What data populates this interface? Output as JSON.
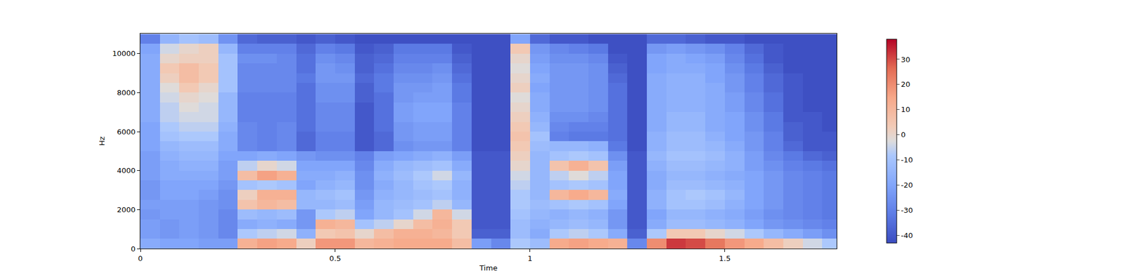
{
  "chart_data": {
    "type": "heatmap",
    "x_label": "Time",
    "y_label": "Hz",
    "xlim": [
      0,
      1.787
    ],
    "xticks": [
      0,
      0.5,
      1,
      1.5
    ],
    "ylim": [
      0,
      11025
    ],
    "yticks": [
      0,
      2000,
      4000,
      6000,
      8000,
      10000
    ],
    "colorbar_range": [
      -43,
      38
    ],
    "colorbar_ticks": [
      -40,
      -30,
      -20,
      -10,
      0,
      10,
      20,
      30
    ],
    "x": [
      0.025,
      0.075,
      0.125,
      0.175,
      0.225,
      0.275,
      0.325,
      0.375,
      0.425,
      0.475,
      0.525,
      0.575,
      0.625,
      0.675,
      0.725,
      0.775,
      0.825,
      0.875,
      0.925,
      0.975,
      1.025,
      1.075,
      1.125,
      1.175,
      1.225,
      1.275,
      1.325,
      1.375,
      1.425,
      1.475,
      1.525,
      1.575,
      1.625,
      1.675,
      1.725,
      1.775
    ],
    "y": [
      250,
      750,
      1250,
      1750,
      2250,
      2750,
      3250,
      3750,
      4250,
      4750,
      5250,
      5750,
      6250,
      6750,
      7250,
      7750,
      8250,
      8750,
      9250,
      9750,
      10250,
      10750
    ],
    "cells": [
      [
        -18,
        -22,
        -22,
        -24,
        -22,
        -24,
        -24,
        -22,
        -22,
        -22,
        -20,
        -20,
        -20,
        -18,
        -18,
        -18,
        -18,
        -18,
        -18,
        -18,
        -20,
        -30
      ],
      [
        -20,
        -24,
        -24,
        -22,
        -22,
        -20,
        -20,
        -18,
        -18,
        -16,
        -14,
        -10,
        -8,
        -6,
        -6,
        -4,
        -2,
        2,
        4,
        0,
        -4,
        -15
      ],
      [
        -20,
        -22,
        -22,
        -22,
        -22,
        -20,
        -20,
        -18,
        -16,
        -14,
        -12,
        -8,
        -6,
        -4,
        -2,
        0,
        4,
        8,
        8,
        2,
        0,
        -10
      ],
      [
        -22,
        -24,
        -24,
        -24,
        -24,
        -22,
        -20,
        -18,
        -16,
        -14,
        -12,
        -8,
        -6,
        -4,
        -4,
        -2,
        0,
        4,
        4,
        2,
        2,
        -12
      ],
      [
        -22,
        -28,
        -28,
        -28,
        -26,
        -26,
        -24,
        -22,
        -22,
        -20,
        -18,
        -18,
        -16,
        -14,
        -14,
        -14,
        -10,
        -10,
        -10,
        -10,
        -14,
        -25
      ],
      [
        12,
        -8,
        -18,
        -12,
        6,
        2,
        -10,
        8,
        -6,
        -20,
        -28,
        -28,
        -28,
        -30,
        -30,
        -30,
        -28,
        -28,
        -28,
        -26,
        -30,
        -36
      ],
      [
        16,
        -6,
        -16,
        -14,
        10,
        12,
        -8,
        16,
        0,
        -18,
        -30,
        -30,
        -30,
        -30,
        -30,
        -30,
        -28,
        -28,
        -28,
        -26,
        -30,
        -38
      ],
      [
        14,
        -4,
        -18,
        -12,
        8,
        12,
        -10,
        12,
        -4,
        -20,
        -28,
        -28,
        -28,
        -30,
        -30,
        -30,
        -28,
        -28,
        -28,
        -28,
        -30,
        -38
      ],
      [
        2,
        -16,
        -24,
        -24,
        -14,
        -14,
        -20,
        -18,
        -20,
        -24,
        -36,
        -36,
        -34,
        -34,
        -34,
        -34,
        -34,
        -32,
        -34,
        -34,
        -36,
        -40
      ],
      [
        18,
        4,
        12,
        -8,
        -14,
        -12,
        -16,
        -18,
        -20,
        -26,
        -30,
        -30,
        -28,
        -28,
        -28,
        -26,
        -26,
        -24,
        -24,
        -26,
        -30,
        -38
      ],
      [
        18,
        6,
        10,
        -6,
        -12,
        -10,
        -14,
        -16,
        -20,
        -26,
        -30,
        -30,
        -28,
        -28,
        -28,
        -26,
        -26,
        -24,
        -26,
        -28,
        -32,
        -40
      ],
      [
        10,
        0,
        -10,
        -20,
        -22,
        -24,
        -26,
        -26,
        -28,
        -30,
        -40,
        -40,
        -40,
        -40,
        -40,
        -38,
        -38,
        -36,
        -38,
        -38,
        -40,
        -42
      ],
      [
        12,
        8,
        -6,
        -14,
        -14,
        -16,
        -18,
        -16,
        -18,
        -22,
        -36,
        -36,
        -34,
        -34,
        -34,
        -34,
        -32,
        -32,
        -34,
        -36,
        -38,
        -42
      ],
      [
        14,
        12,
        0,
        -10,
        -12,
        -14,
        -14,
        -12,
        -14,
        -20,
        -26,
        -24,
        -24,
        -22,
        -22,
        -24,
        -24,
        -26,
        -28,
        -30,
        -32,
        -42
      ],
      [
        14,
        12,
        8,
        -4,
        -10,
        -12,
        -10,
        -8,
        -12,
        -18,
        -24,
        -22,
        -22,
        -20,
        -20,
        -22,
        -24,
        -26,
        -28,
        -30,
        -32,
        -42
      ],
      [
        14,
        10,
        12,
        10,
        -6,
        -10,
        -8,
        -4,
        -10,
        -16,
        -24,
        -22,
        -22,
        -20,
        -20,
        -22,
        -22,
        -24,
        -26,
        -30,
        -32,
        -42
      ],
      [
        8,
        4,
        4,
        -4,
        -14,
        -16,
        -16,
        -14,
        -18,
        -22,
        -30,
        -30,
        -30,
        -30,
        -30,
        -32,
        -32,
        -34,
        -36,
        -38,
        -40,
        -42
      ],
      [
        -22,
        -38,
        -40,
        -40,
        -40,
        -40,
        -40,
        -40,
        -40,
        -40,
        -42,
        -42,
        -42,
        -42,
        -42,
        -42,
        -42,
        -42,
        -42,
        -42,
        -42,
        -42
      ],
      [
        -28,
        -38,
        -40,
        -40,
        -40,
        -40,
        -40,
        -40,
        -40,
        -40,
        -42,
        -42,
        -42,
        -42,
        -42,
        -42,
        -42,
        -42,
        -42,
        -42,
        -42,
        -42
      ],
      [
        -8,
        -12,
        -12,
        -10,
        -8,
        -8,
        -6,
        -4,
        0,
        2,
        4,
        6,
        4,
        2,
        0,
        -2,
        2,
        0,
        -2,
        0,
        4,
        -20
      ],
      [
        -12,
        -18,
        -16,
        -14,
        -12,
        -14,
        -14,
        -14,
        -14,
        -14,
        -12,
        -10,
        -14,
        -16,
        -18,
        -18,
        -20,
        -18,
        -20,
        -22,
        -24,
        -36
      ],
      [
        14,
        -8,
        -14,
        -16,
        -10,
        10,
        -10,
        -6,
        6,
        -10,
        -14,
        -30,
        -28,
        -26,
        -24,
        -24,
        -24,
        -24,
        -24,
        -26,
        -28,
        -40
      ],
      [
        16,
        -6,
        -12,
        -14,
        -8,
        14,
        -8,
        -2,
        12,
        -8,
        -14,
        -32,
        -30,
        -26,
        -24,
        -24,
        -24,
        -24,
        -24,
        -26,
        -30,
        -40
      ],
      [
        14,
        -8,
        -14,
        -16,
        -10,
        10,
        -10,
        -6,
        6,
        -10,
        -16,
        -32,
        -30,
        -28,
        -26,
        -26,
        -26,
        -26,
        -26,
        -28,
        -32,
        -42
      ],
      [
        12,
        -18,
        -24,
        -24,
        -20,
        -18,
        -20,
        -20,
        -22,
        -26,
        -32,
        -34,
        -34,
        -34,
        -34,
        -34,
        -34,
        -36,
        -38,
        -40,
        -42,
        -42
      ],
      [
        -28,
        -38,
        -40,
        -40,
        -40,
        -40,
        -40,
        -40,
        -40,
        -40,
        -42,
        -42,
        -42,
        -42,
        -42,
        -42,
        -42,
        -42,
        -42,
        -42,
        -42,
        -42
      ],
      [
        20,
        -8,
        -18,
        -20,
        -16,
        -16,
        -18,
        -18,
        -16,
        -14,
        -16,
        -16,
        -18,
        -18,
        -18,
        -18,
        -18,
        -18,
        -20,
        -20,
        -24,
        -36
      ],
      [
        32,
        4,
        -12,
        -14,
        -10,
        -10,
        -12,
        -14,
        -12,
        -10,
        -12,
        -12,
        -14,
        -14,
        -16,
        -16,
        -16,
        -16,
        -18,
        -18,
        -22,
        -36
      ],
      [
        30,
        4,
        -12,
        -14,
        -10,
        -8,
        -12,
        -14,
        -12,
        -10,
        -12,
        -12,
        -14,
        -14,
        -16,
        -16,
        -16,
        -16,
        -18,
        -20,
        -24,
        -38
      ],
      [
        24,
        0,
        -14,
        -16,
        -12,
        -10,
        -14,
        -16,
        -14,
        -12,
        -14,
        -16,
        -18,
        -18,
        -18,
        -18,
        -18,
        -20,
        -20,
        -22,
        -26,
        -40
      ],
      [
        18,
        -4,
        -16,
        -18,
        -16,
        -14,
        -16,
        -18,
        -16,
        -16,
        -18,
        -20,
        -20,
        -20,
        -22,
        -22,
        -24,
        -24,
        -26,
        -28,
        -30,
        -40
      ],
      [
        14,
        -8,
        -20,
        -22,
        -20,
        -20,
        -20,
        -20,
        -22,
        -22,
        -24,
        -24,
        -26,
        -26,
        -28,
        -28,
        -30,
        -30,
        -32,
        -34,
        -36,
        -42
      ],
      [
        8,
        -14,
        -24,
        -26,
        -24,
        -24,
        -24,
        -24,
        -26,
        -28,
        -30,
        -30,
        -32,
        -32,
        -34,
        -34,
        -36,
        -36,
        -38,
        -40,
        -40,
        -42
      ],
      [
        2,
        -18,
        -26,
        -28,
        -28,
        -28,
        -28,
        -28,
        -30,
        -32,
        -36,
        -38,
        -38,
        -40,
        -40,
        -40,
        -40,
        -40,
        -42,
        -42,
        -42,
        -42
      ],
      [
        -4,
        -22,
        -28,
        -30,
        -30,
        -30,
        -30,
        -30,
        -32,
        -36,
        -40,
        -40,
        -40,
        -40,
        -42,
        -42,
        -42,
        -42,
        -42,
        -42,
        -42,
        -42
      ],
      [
        -8,
        -26,
        -30,
        -32,
        -32,
        -32,
        -32,
        -32,
        -34,
        -38,
        -40,
        -40,
        -42,
        -42,
        -42,
        -42,
        -42,
        -42,
        -42,
        -42,
        -42,
        -42
      ]
    ]
  }
}
